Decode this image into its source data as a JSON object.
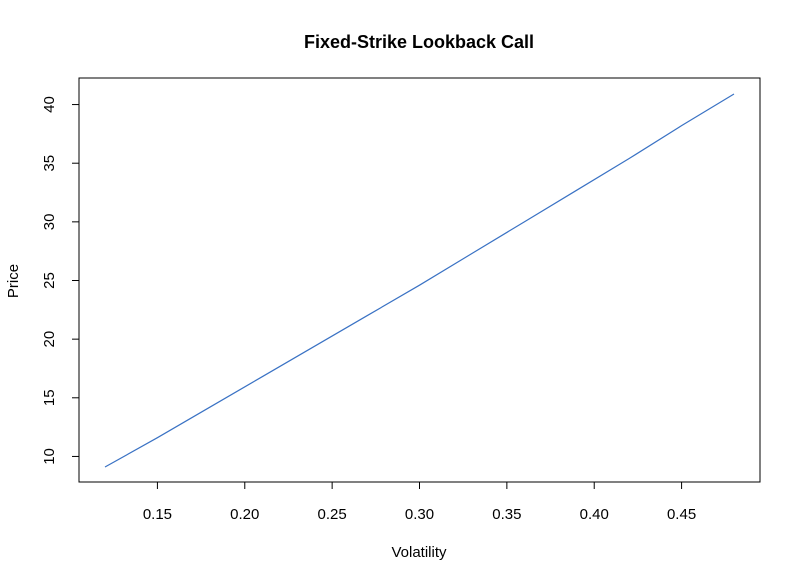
{
  "chart_data": {
    "type": "line",
    "title": "Fixed-Strike Lookback Call",
    "xlabel": "Volatility",
    "ylabel": "Price",
    "xlim": [
      0.12,
      0.48
    ],
    "ylim": [
      9.1,
      40.9
    ],
    "x_ticks": [
      "0.15",
      "0.20",
      "0.25",
      "0.30",
      "0.35",
      "0.40",
      "0.45"
    ],
    "y_ticks": [
      "10",
      "15",
      "20",
      "25",
      "30",
      "35",
      "40"
    ],
    "grid": false,
    "line_color": "#3a72c4",
    "series": [
      {
        "x": [
          0.12,
          0.15,
          0.18,
          0.21,
          0.24,
          0.27,
          0.3,
          0.33,
          0.36,
          0.39,
          0.42,
          0.45,
          0.48
        ],
        "y": [
          9.1,
          11.6,
          14.2,
          16.8,
          19.4,
          22.0,
          24.6,
          27.3,
          30.0,
          32.7,
          35.4,
          38.2,
          40.9
        ]
      }
    ]
  }
}
